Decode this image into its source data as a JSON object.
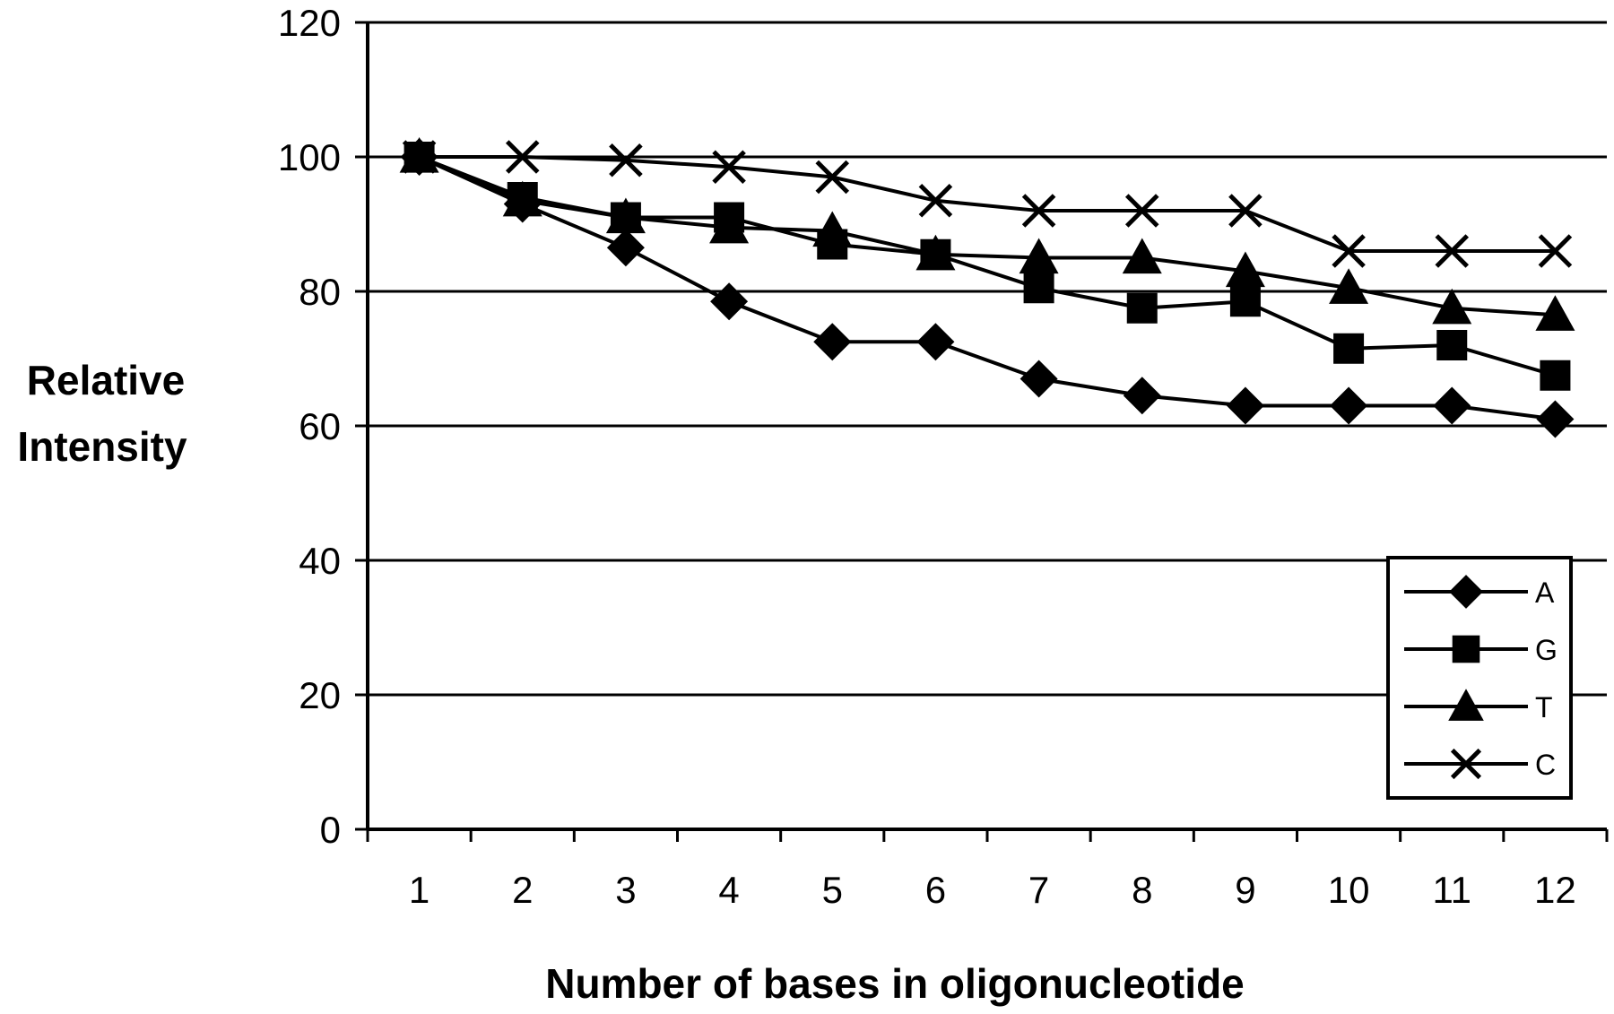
{
  "chart_data": {
    "type": "line",
    "title": "",
    "xlabel": "Number of bases in oligonucleotide",
    "ylabel_lines": [
      "Relative",
      "Intensity"
    ],
    "categories": [
      "1",
      "2",
      "3",
      "4",
      "5",
      "6",
      "7",
      "8",
      "9",
      "10",
      "11",
      "12"
    ],
    "yticks": [
      "0",
      "20",
      "40",
      "60",
      "80",
      "100",
      "120"
    ],
    "ylim": [
      0,
      120
    ],
    "grid": true,
    "legend_position": "bottom-right",
    "series": [
      {
        "name": "A",
        "marker": "diamond",
        "values": [
          100,
          93,
          86.5,
          78.5,
          72.5,
          72.5,
          67,
          64.5,
          63,
          63,
          63,
          61
        ]
      },
      {
        "name": "G",
        "marker": "square",
        "values": [
          100,
          94,
          91,
          91,
          87,
          85.5,
          80.5,
          77.5,
          78.5,
          71.5,
          72,
          67.5
        ]
      },
      {
        "name": "T",
        "marker": "triangle",
        "values": [
          100,
          93.5,
          91,
          89.5,
          89,
          85.5,
          85,
          85,
          83,
          80.5,
          77.5,
          76.5
        ]
      },
      {
        "name": "C",
        "marker": "x",
        "values": [
          100,
          100,
          99.5,
          98.5,
          97,
          93.5,
          92,
          92,
          92,
          86,
          86,
          86
        ]
      }
    ]
  }
}
